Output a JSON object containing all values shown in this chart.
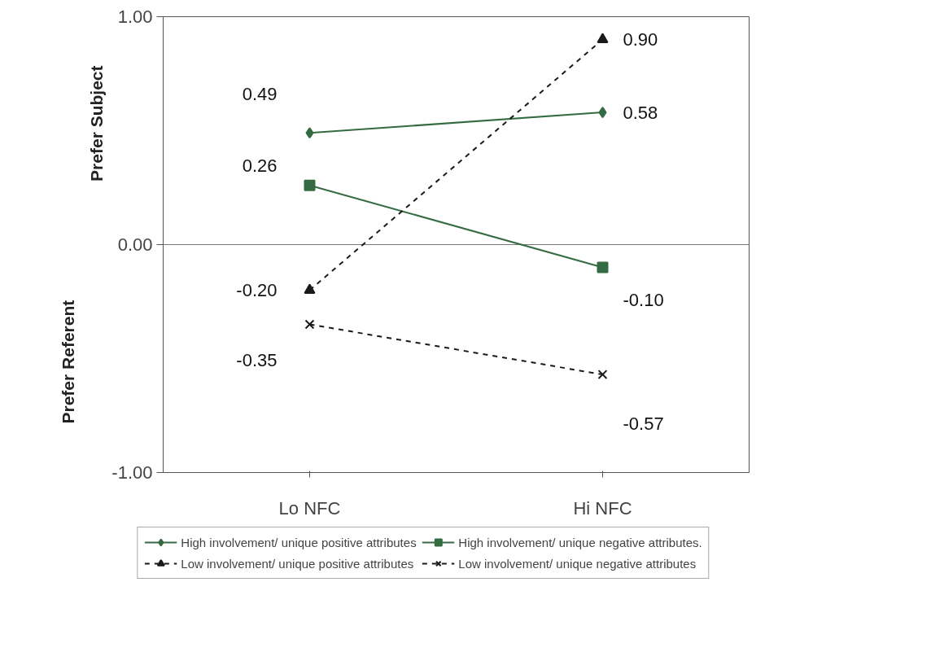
{
  "chart_data": {
    "type": "line",
    "categories": [
      "Lo NFC",
      "Hi NFC"
    ],
    "series": [
      {
        "name": "High involvement/ unique positive attributes",
        "color": "#356b42",
        "values": [
          0.49,
          0.58
        ],
        "value_labels": [
          "0.49",
          "0.58"
        ],
        "marker": "diamond",
        "line_style": "solid"
      },
      {
        "name": "High involvement/ unique negative attributes.",
        "color": "#356b42",
        "values": [
          0.26,
          -0.1
        ],
        "value_labels": [
          "0.26",
          "-0.10"
        ],
        "marker": "square",
        "line_style": "solid"
      },
      {
        "name": "Low involvement/ unique positive attributes",
        "color": "#1a1a1a",
        "values": [
          -0.2,
          0.9
        ],
        "value_labels": [
          "-0.20",
          "0.90"
        ],
        "marker": "triangle",
        "line_style": "dashed"
      },
      {
        "name": "Low involvement/ unique negative attributes",
        "color": "#1a1a1a",
        "values": [
          -0.35,
          -0.57
        ],
        "value_labels": [
          "-0.35",
          "-0.57"
        ],
        "marker": "cross",
        "line_style": "dashed"
      }
    ],
    "ylim": [
      -1.0,
      1.0
    ],
    "yticks": [
      {
        "value": -1.0,
        "label": "-1.00"
      },
      {
        "value": 0.0,
        "label": "0.00"
      },
      {
        "value": 1.0,
        "label": "1.00"
      }
    ],
    "annotations": [
      "Prefer Subject",
      "Prefer Referent"
    ],
    "grid": "y",
    "legend": "bottom"
  }
}
